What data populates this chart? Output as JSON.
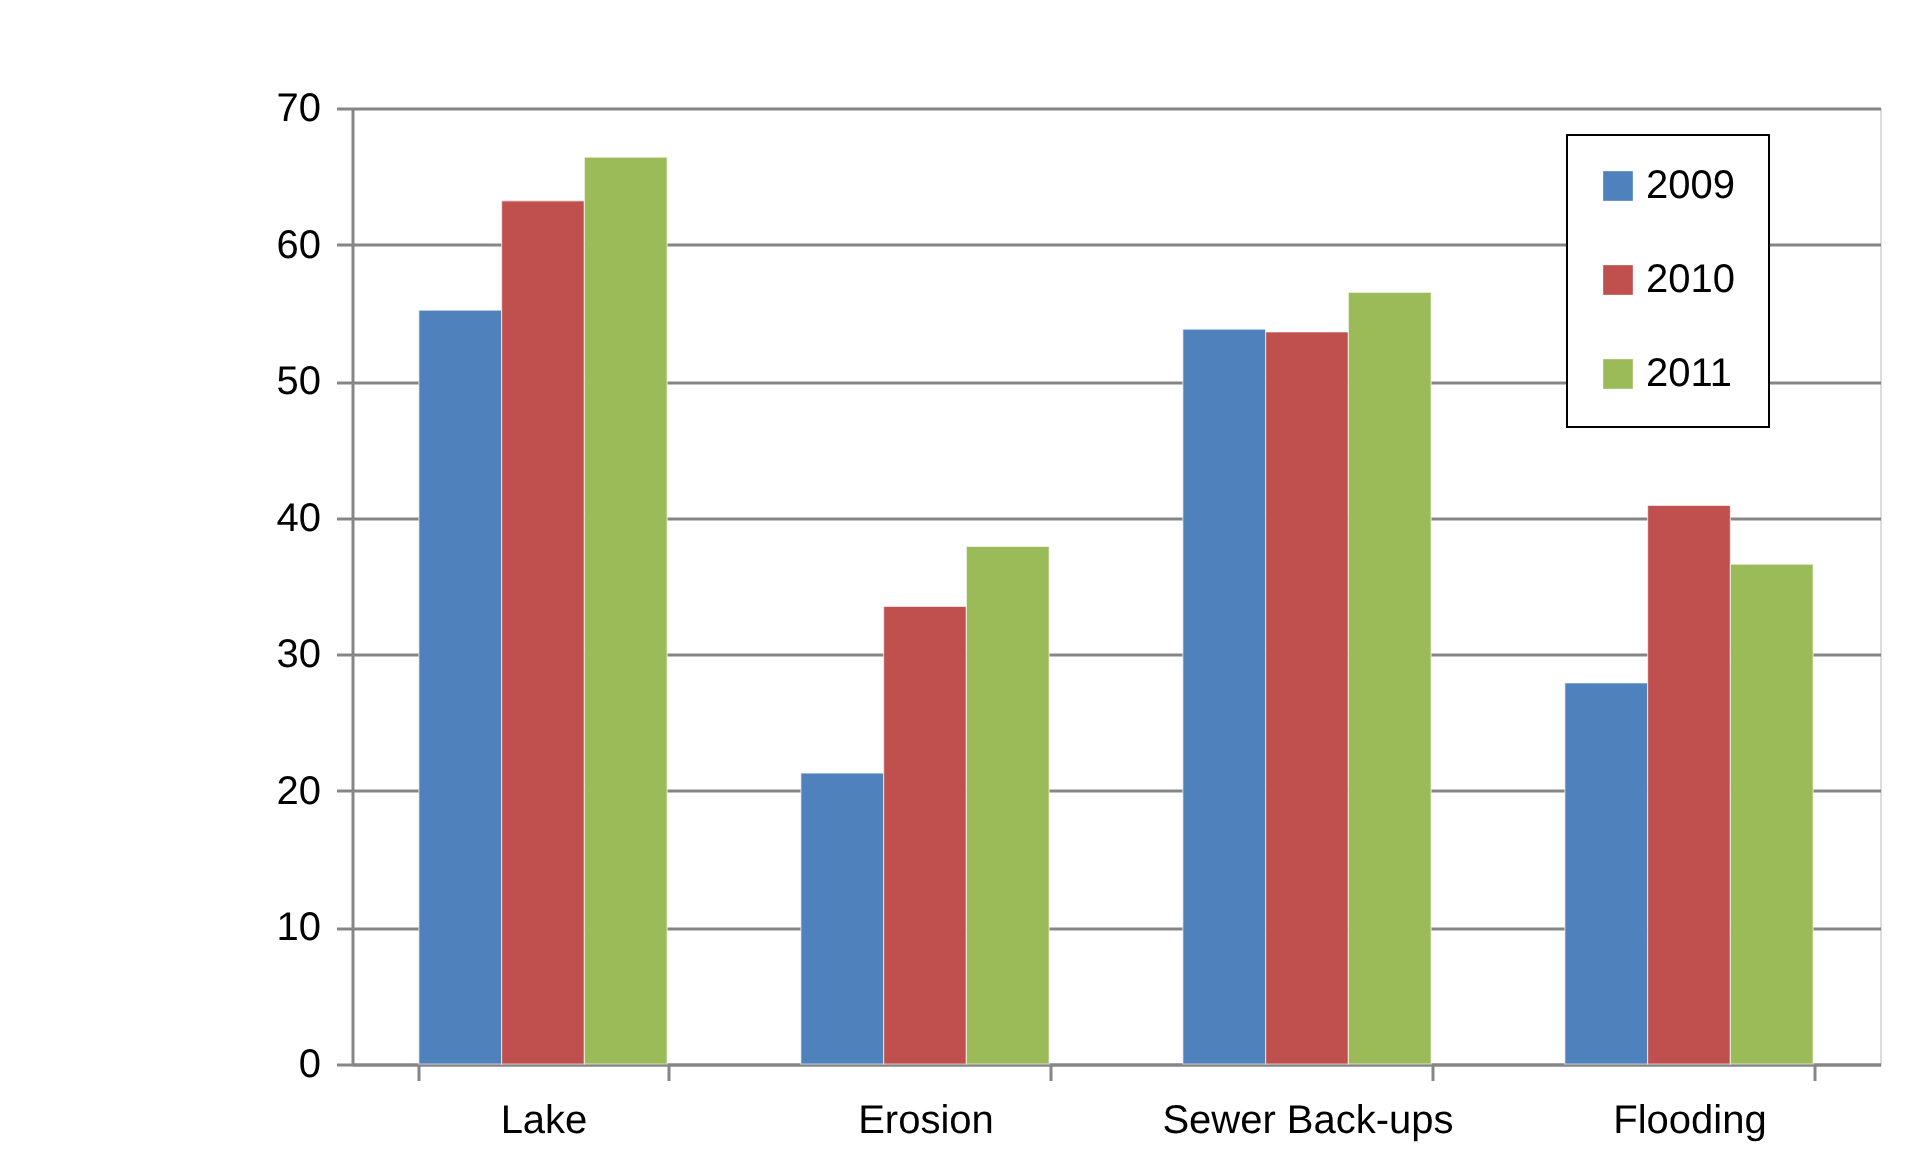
{
  "chart_data": {
    "type": "bar",
    "categories": [
      "Lake",
      "Erosion",
      "Sewer Back-ups",
      "Flooding"
    ],
    "series": [
      {
        "name": "2009",
        "color": "#4f81bd",
        "values": [
          55.2,
          21.3,
          53.8,
          27.9
        ]
      },
      {
        "name": "2010",
        "color": "#c0504d",
        "values": [
          63.2,
          33.5,
          53.6,
          40.9
        ]
      },
      {
        "name": "2011",
        "color": "#9bbb59",
        "values": [
          66.4,
          37.9,
          56.5,
          36.6
        ]
      }
    ],
    "ylim": [
      0,
      70
    ],
    "yticks": [
      0,
      10,
      20,
      30,
      40,
      50,
      60,
      70
    ],
    "grid": "y",
    "legend": "top right"
  }
}
